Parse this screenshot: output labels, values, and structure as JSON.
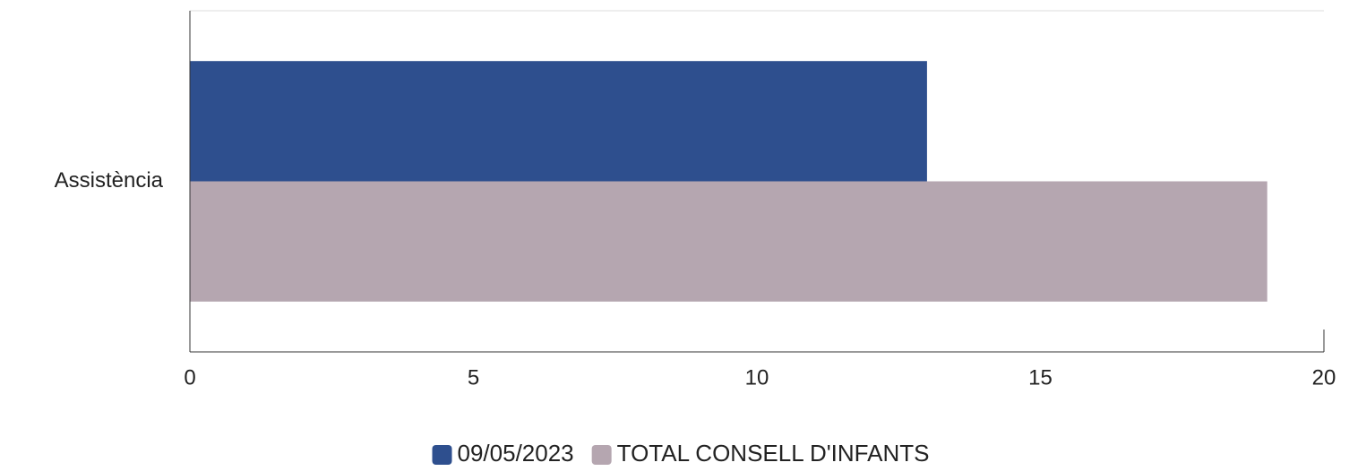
{
  "chart_data": {
    "type": "bar",
    "orientation": "horizontal",
    "categories": [
      "Assistència"
    ],
    "series": [
      {
        "name": "09/05/2023",
        "color": "#2e4f8e",
        "values": [
          13
        ]
      },
      {
        "name": "TOTAL CONSELL D'INFANTS",
        "color": "#b5a6b0",
        "values": [
          19
        ]
      }
    ],
    "xlim": [
      0,
      20
    ],
    "xticks": [
      0,
      5,
      10,
      15,
      20
    ],
    "grid": false,
    "legend": "bottom"
  }
}
